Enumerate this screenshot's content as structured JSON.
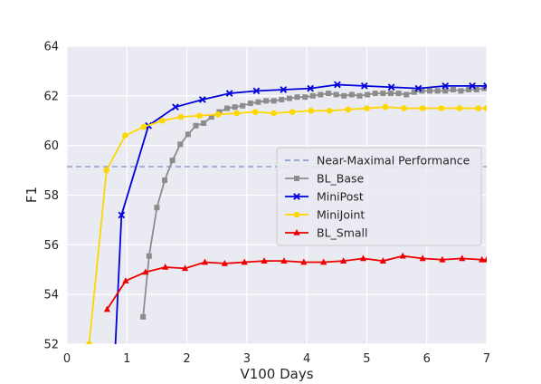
{
  "chart_data": {
    "type": "line",
    "title": "",
    "xlabel": "V100 Days",
    "ylabel": "F1",
    "xlim": [
      0,
      7
    ],
    "ylim": [
      52,
      64
    ],
    "xticks": [
      0,
      1,
      2,
      3,
      4,
      5,
      6,
      7
    ],
    "yticks": [
      52,
      54,
      56,
      58,
      60,
      62,
      64
    ],
    "grid": true,
    "legend_position": "right-center",
    "reference_lines": [
      {
        "name": "Near-Maximal Performance",
        "y": 59.15,
        "color": "#8da0cb",
        "style": "dashed"
      }
    ],
    "series": [
      {
        "name": "BL_Base",
        "color": "#8c8c8c",
        "marker": "square",
        "x": [
          1.27,
          1.37,
          1.5,
          1.63,
          1.76,
          1.89,
          2.02,
          2.15,
          2.28,
          2.41,
          2.54,
          2.67,
          2.8,
          2.93,
          3.06,
          3.19,
          3.32,
          3.45,
          3.58,
          3.71,
          3.84,
          3.97,
          4.1,
          4.23,
          4.36,
          4.49,
          4.62,
          4.75,
          4.88,
          5.01,
          5.14,
          5.27,
          5.4,
          5.53,
          5.66,
          5.79,
          5.92,
          6.05,
          6.18,
          6.31,
          6.44,
          6.57,
          6.7,
          6.83,
          6.96
        ],
        "y": [
          53.1,
          55.55,
          57.5,
          58.6,
          59.4,
          60.05,
          60.45,
          60.8,
          60.9,
          61.15,
          61.35,
          61.5,
          61.55,
          61.6,
          61.7,
          61.75,
          61.8,
          61.8,
          61.85,
          61.9,
          61.95,
          61.95,
          62.0,
          62.05,
          62.1,
          62.05,
          62.0,
          62.05,
          62.0,
          62.05,
          62.1,
          62.1,
          62.1,
          62.1,
          62.05,
          62.15,
          62.2,
          62.2,
          62.2,
          62.2,
          62.25,
          62.2,
          62.25,
          62.25,
          62.3
        ]
      },
      {
        "name": "MiniPost",
        "color": "#0000dd",
        "marker": "x",
        "x": [
          0.77,
          0.91,
          1.36,
          1.81,
          2.26,
          2.71,
          3.16,
          3.61,
          4.06,
          4.51,
          4.96,
          5.41,
          5.86,
          6.31,
          6.76,
          7.0
        ],
        "y": [
          50.0,
          57.2,
          60.8,
          61.55,
          61.85,
          62.1,
          62.2,
          62.25,
          62.3,
          62.45,
          62.4,
          62.35,
          62.3,
          62.4,
          62.4,
          62.4
        ]
      },
      {
        "name": "MiniJoint",
        "color": "#ffd700",
        "marker": "circle",
        "x": [
          0.37,
          0.66,
          0.97,
          1.28,
          1.59,
          1.9,
          2.21,
          2.52,
          2.83,
          3.14,
          3.45,
          3.76,
          4.07,
          4.38,
          4.69,
          5.0,
          5.31,
          5.62,
          5.93,
          6.24,
          6.55,
          6.86,
          7.0
        ],
        "y": [
          52.0,
          59.0,
          60.4,
          60.75,
          61.0,
          61.15,
          61.2,
          61.25,
          61.3,
          61.35,
          61.3,
          61.35,
          61.4,
          61.4,
          61.45,
          61.5,
          61.55,
          61.5,
          61.5,
          61.5,
          61.5,
          61.5,
          61.5
        ]
      },
      {
        "name": "BL_Small",
        "color": "#ee0000",
        "marker": "triangle",
        "x": [
          0.67,
          0.98,
          1.31,
          1.64,
          1.97,
          2.3,
          2.63,
          2.96,
          3.29,
          3.62,
          3.95,
          4.28,
          4.61,
          4.94,
          5.27,
          5.6,
          5.93,
          6.26,
          6.59,
          6.92,
          7.0
        ],
        "y": [
          53.4,
          54.55,
          54.9,
          55.1,
          55.05,
          55.3,
          55.25,
          55.3,
          55.35,
          55.35,
          55.3,
          55.3,
          55.35,
          55.45,
          55.35,
          55.55,
          55.45,
          55.4,
          55.45,
          55.4,
          55.4
        ]
      }
    ],
    "legend": [
      "Near-Maximal Performance",
      "BL_Base",
      "MiniPost",
      "MiniJoint",
      "BL_Small"
    ]
  }
}
